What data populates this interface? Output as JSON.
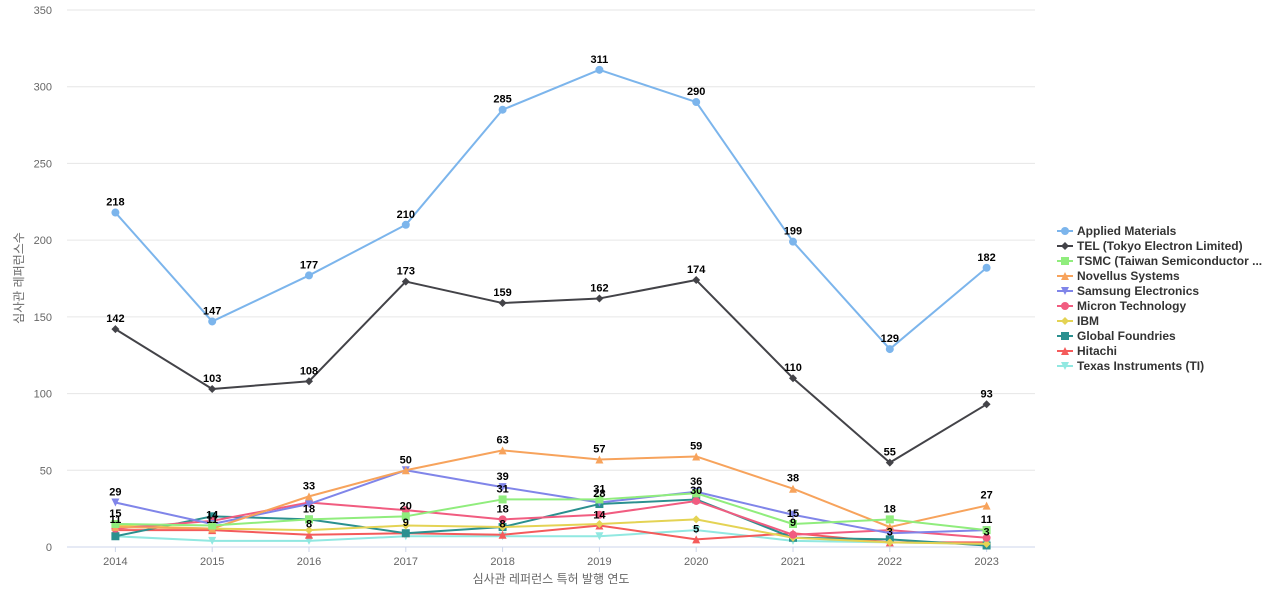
{
  "chart_data": {
    "type": "line",
    "title": "",
    "xlabel": "심사관 레퍼런스 특허 발행 연도",
    "ylabel": "심사관 레퍼런스수",
    "ylim": [
      0,
      350
    ],
    "yticks": [
      0,
      50,
      100,
      150,
      200,
      250,
      300,
      350
    ],
    "grid": true,
    "legend_position": "right",
    "categories": [
      "2014",
      "2015",
      "2016",
      "2017",
      "2018",
      "2019",
      "2020",
      "2021",
      "2022",
      "2023"
    ],
    "series": [
      {
        "name": "Applied Materials",
        "color": "#7cb5ec",
        "marker": "circle",
        "values": [
          218,
          147,
          177,
          210,
          285,
          311,
          290,
          199,
          129,
          182
        ],
        "labeled": true
      },
      {
        "name": "TEL (Tokyo Electron Limited)",
        "color": "#434348",
        "marker": "diamond",
        "values": [
          142,
          103,
          108,
          173,
          159,
          162,
          174,
          110,
          55,
          93
        ],
        "labeled": true
      },
      {
        "name": "TSMC (Taiwan Semiconductor ...",
        "color": "#90ed7d",
        "marker": "square",
        "values": [
          15,
          14,
          18,
          20,
          31,
          31,
          35,
          15,
          18,
          11
        ],
        "labeled": [
          0,
          1,
          2,
          3,
          4,
          5,
          7,
          8,
          9
        ]
      },
      {
        "name": "Novellus Systems",
        "color": "#f7a35c",
        "marker": "triangle",
        "values": [
          13,
          12,
          33,
          50,
          63,
          57,
          59,
          38,
          13,
          27
        ],
        "labeled": [
          2,
          3,
          4,
          5,
          6,
          7,
          9
        ]
      },
      {
        "name": "Samsung Electronics",
        "color": "#8085e9",
        "marker": "triangle-down",
        "values": [
          29,
          15,
          28,
          50,
          39,
          29,
          36,
          21,
          9,
          11
        ],
        "labeled": [
          0,
          4,
          6
        ]
      },
      {
        "name": "Micron Technology",
        "color": "#f15c80",
        "marker": "circle",
        "values": [
          12,
          17,
          29,
          24,
          18,
          21,
          30,
          8,
          11,
          6
        ],
        "labeled": [
          4,
          6
        ]
      },
      {
        "name": "IBM",
        "color": "#e4d354",
        "marker": "diamond",
        "values": [
          14,
          12,
          11,
          14,
          13,
          15,
          18,
          6,
          3,
          2
        ],
        "labeled": []
      },
      {
        "name": "Global Foundries",
        "color": "#2b908f",
        "marker": "square",
        "values": [
          7,
          20,
          18,
          9,
          13,
          28,
          31,
          6,
          5,
          1
        ],
        "labeled": [
          5
        ]
      },
      {
        "name": "Hitachi",
        "color": "#f45b5b",
        "marker": "triangle",
        "values": [
          11,
          11,
          8,
          9,
          8,
          14,
          5,
          9,
          3,
          3
        ],
        "labeled": [
          0,
          1,
          2,
          3,
          4,
          5,
          6,
          7,
          8,
          9
        ]
      },
      {
        "name": "Texas Instruments (TI)",
        "color": "#91e8e1",
        "marker": "triangle-down",
        "values": [
          7,
          4,
          4,
          7,
          7,
          7,
          11,
          4,
          3,
          2
        ],
        "labeled": []
      }
    ]
  }
}
